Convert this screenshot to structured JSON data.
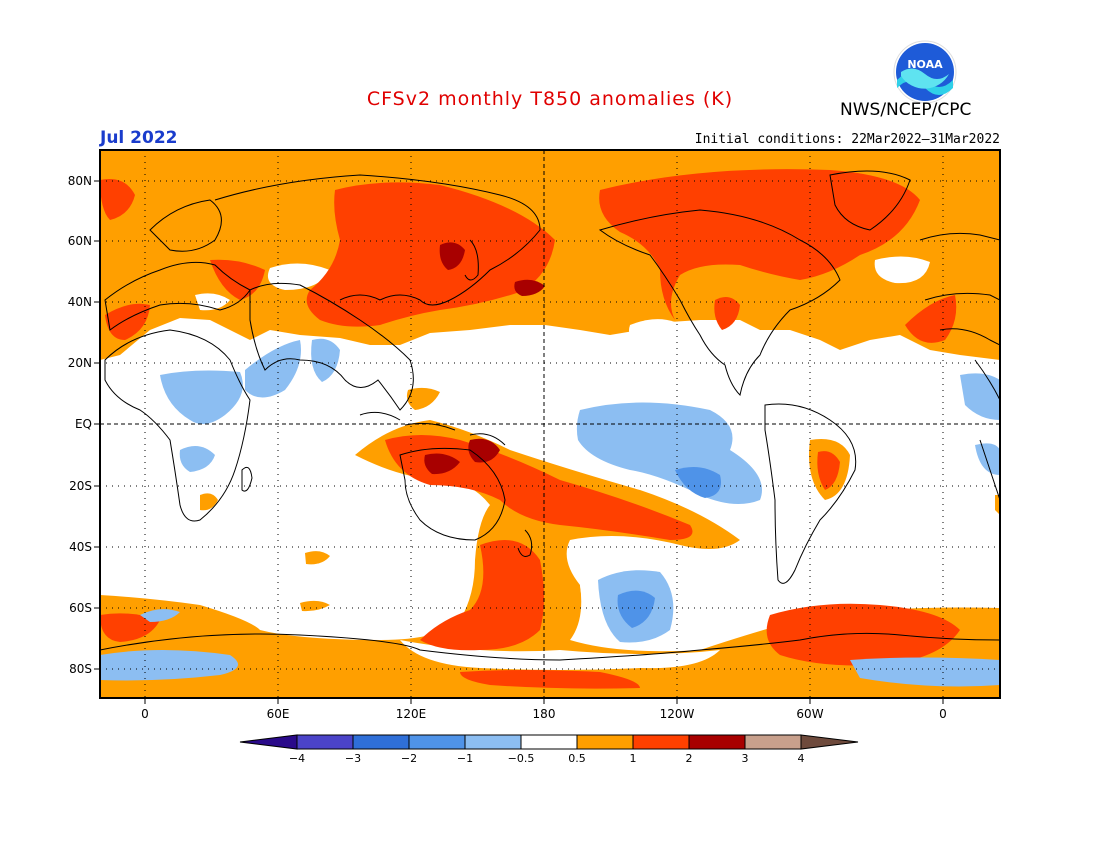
{
  "header": {
    "title": "CFSv2 monthly T850 anomalies (K)",
    "agency": "NWS/NCEP/CPC",
    "month": "Jul 2022",
    "initial_conditions": "Initial conditions: 22Mar2022–31Mar2022",
    "logo_text": "NOAA"
  },
  "map": {
    "lat_labels": [
      "80N",
      "60N",
      "40N",
      "20N",
      "EQ",
      "20S",
      "40S",
      "60S",
      "80S"
    ],
    "lon_labels": [
      "0",
      "60E",
      "120E",
      "180",
      "120W",
      "60W",
      "0"
    ]
  },
  "colorbar": {
    "labels": [
      "−4",
      "−3",
      "−2",
      "−1",
      "−0.5",
      "0.5",
      "1",
      "2",
      "3",
      "4"
    ],
    "colors": [
      "#2a0a8a",
      "#4b43c8",
      "#2f6fd8",
      "#4f93e8",
      "#8cbef2",
      "#ffffff",
      "#ff9f00",
      "#ff4000",
      "#a80000",
      "#c8a08c",
      "#6e4a3c"
    ]
  },
  "colors": {
    "title": "#e00000",
    "month": "#1a3ccc",
    "warm1": "#ff9f00",
    "warm2": "#ff4000",
    "warm3": "#a80000",
    "cool1": "#8cbef2",
    "cool2": "#4f93e8"
  }
}
